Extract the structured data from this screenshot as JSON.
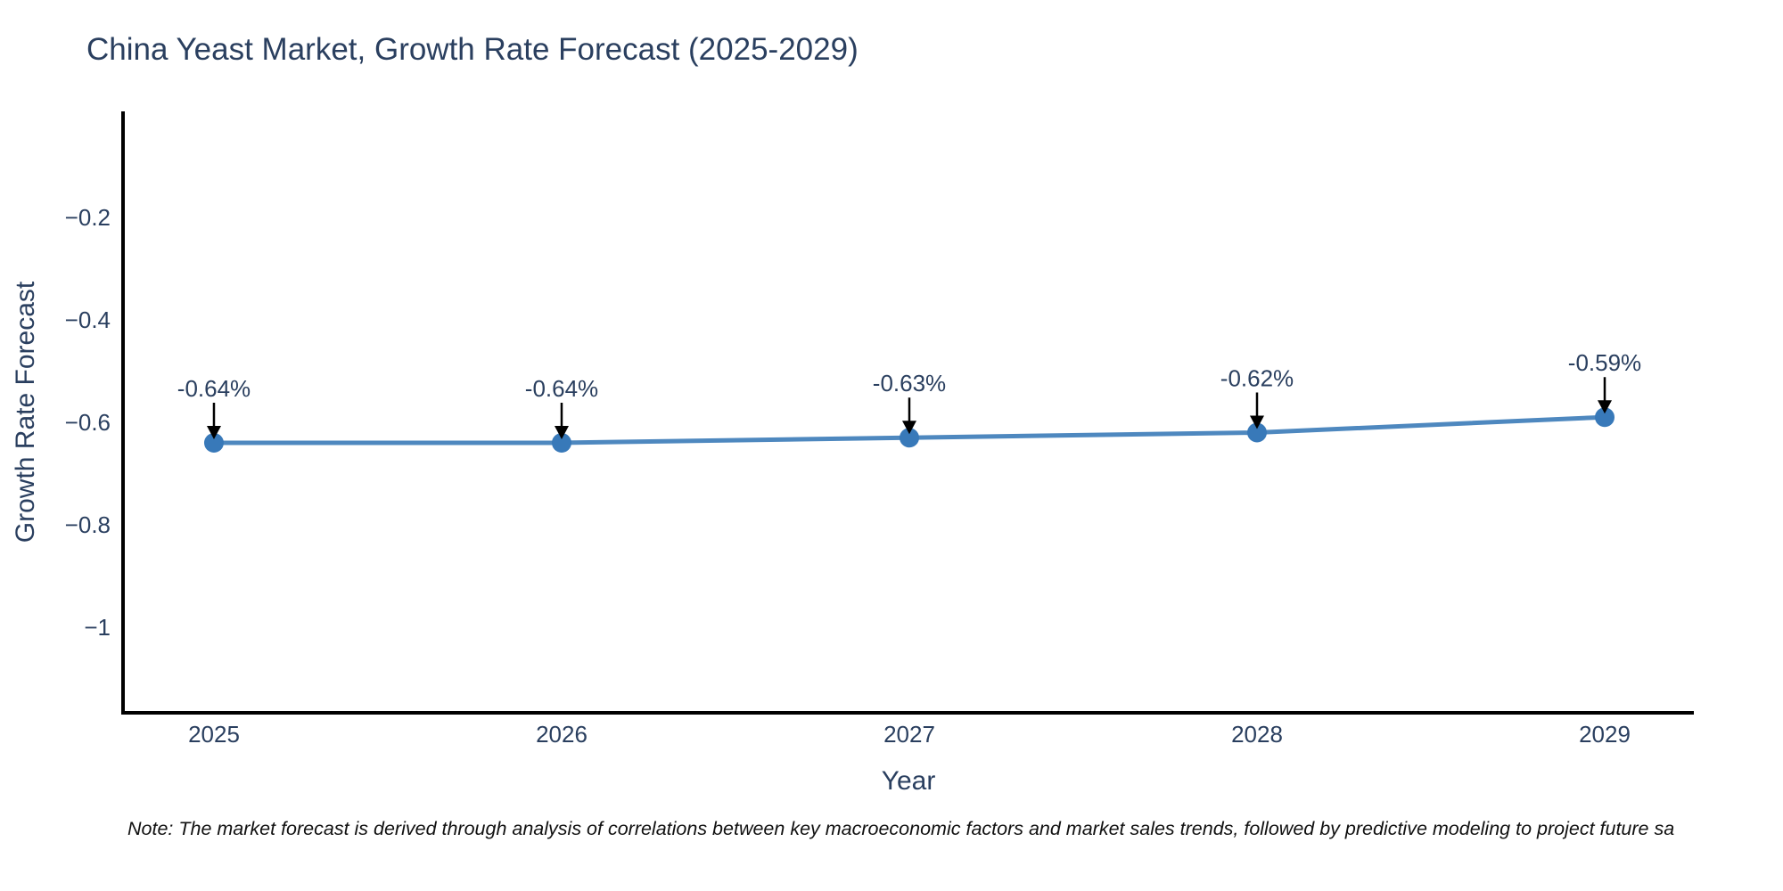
{
  "title": {
    "text": "China Yeast Market, Growth Rate Forecast (2025-2029)",
    "color": "#2a3f5f"
  },
  "note": {
    "text": "Note: The market forecast is derived through analysis of correlations between key macroeconomic factors and market sales trends, followed by predictive modeling to project future sa"
  },
  "chart_data": {
    "type": "line",
    "title": "China Yeast Market, Growth Rate Forecast (2025-2029)",
    "xlabel": "Year",
    "ylabel": "Growth Rate Forecast",
    "x": [
      2025,
      2026,
      2027,
      2028,
      2029
    ],
    "series": [
      {
        "name": "Growth Rate Forecast",
        "values": [
          -0.64,
          -0.64,
          -0.63,
          -0.62,
          -0.59
        ]
      }
    ],
    "point_labels": [
      "-0.64%",
      "-0.64%",
      "-0.63%",
      "-0.62%",
      "-0.59%"
    ],
    "xlim": [
      2024.7385,
      2029.2564
    ],
    "ylim": [
      -1.167,
      0.007
    ],
    "xticks": {
      "values": [
        2025,
        2026,
        2027,
        2028,
        2029
      ],
      "labels": [
        "2025",
        "2026",
        "2027",
        "2028",
        "2029"
      ]
    },
    "yticks": {
      "values": [
        -0.2,
        -0.4,
        -0.6,
        -0.8,
        -1
      ],
      "labels": [
        "−0.2",
        "−0.4",
        "−0.6",
        "−0.8",
        "−1"
      ]
    },
    "grid": false,
    "legend": "none",
    "colors": {
      "line": "#4e88bf",
      "marker": "#3879b9",
      "axis": "#000000",
      "tick_text": "#2a3f5f",
      "axis_title_text": "#2a3f5f",
      "point_label_text": "#2a3f5f",
      "arrow": "#000000"
    }
  }
}
